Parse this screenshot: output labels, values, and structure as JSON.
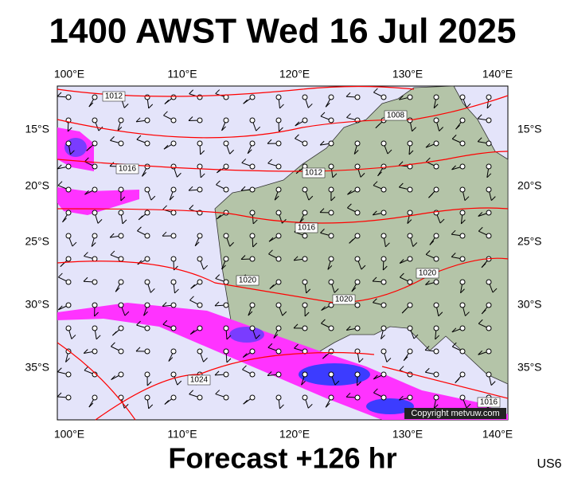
{
  "header": {
    "title": "1400 AWST Wed 16 Jul 2025"
  },
  "footer": {
    "forecast": "Forecast +126 hr",
    "code": "US6"
  },
  "axes": {
    "lon_labels": [
      "100°E",
      "110°E",
      "120°E",
      "130°E",
      "140°E"
    ],
    "lat_labels": [
      "15°S",
      "20°S",
      "25°S",
      "30°S",
      "35°S"
    ]
  },
  "isobar_labels": [
    "1012",
    "1008",
    "1016",
    "1012",
    "1016",
    "1020",
    "1020",
    "1020",
    "1024",
    "1016"
  ],
  "copyright": "Copyright metvuw.com"
}
